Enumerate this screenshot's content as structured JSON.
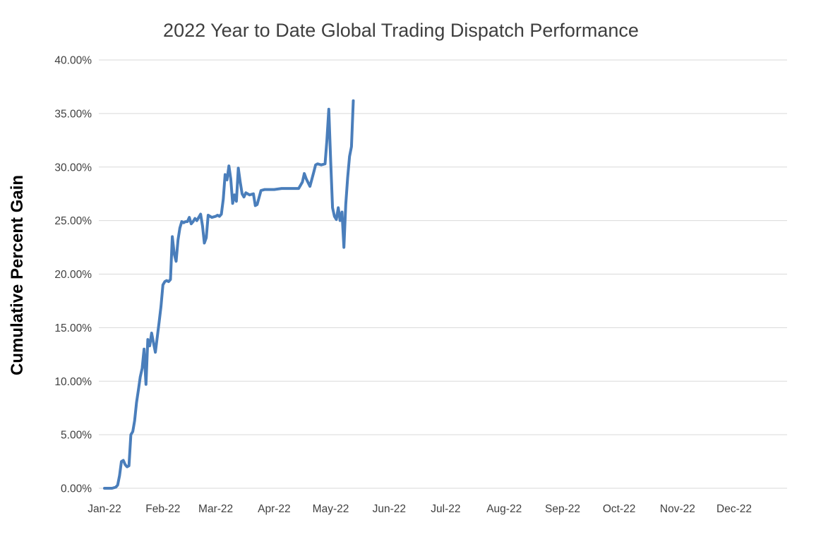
{
  "colors": {
    "background": "#ffffff",
    "grid": "#d9d9d9",
    "title_text": "#3f3f3f",
    "tick_text": "#404040",
    "axis_label_text": "#000000",
    "line": "#4A7EBB"
  },
  "chart_data": {
    "type": "line",
    "title": "2022 Year to Date Global Trading Dispatch Performance",
    "xlabel": "",
    "ylabel": "Cumulative Percent Gain",
    "ylim": [
      0,
      40
    ],
    "grid": "horizontal",
    "legend": "none",
    "line_color": "#4A7EBB",
    "y_tick_values": [
      0,
      5,
      10,
      15,
      20,
      25,
      30,
      35,
      40
    ],
    "y_tick_labels": [
      "0.00%",
      "5.00%",
      "10.00%",
      "15.00%",
      "20.00%",
      "25.00%",
      "30.00%",
      "35.00%",
      "40.00%"
    ],
    "x_tick_labels": [
      "Jan-22",
      "Feb-22",
      "Mar-22",
      "Apr-22",
      "May-22",
      "Jun-22",
      "Jul-22",
      "Aug-22",
      "Sep-22",
      "Oct-22",
      "Nov-22",
      "Dec-22"
    ],
    "x_tick_days": [
      1,
      32,
      60,
      91,
      121,
      152,
      182,
      213,
      244,
      274,
      305,
      335
    ],
    "series": [
      {
        "name": "Cumulative Percent Gain",
        "x_day_of_year": [
          1,
          3,
          5,
          7,
          8,
          9,
          10,
          11,
          12,
          13,
          14,
          15,
          16,
          17,
          18,
          19,
          20,
          21,
          22,
          23,
          24,
          25,
          26,
          27,
          28,
          30,
          31,
          32,
          33,
          34,
          35,
          36,
          37,
          38,
          39,
          40,
          41,
          42,
          43,
          44,
          45,
          46,
          47,
          48,
          49,
          50,
          52,
          53,
          54,
          55,
          56,
          57,
          58,
          60,
          61,
          62,
          63,
          64,
          65,
          66,
          67,
          68,
          69,
          70,
          71,
          72,
          73,
          74,
          75,
          76,
          78,
          80,
          81,
          82,
          84,
          86,
          88,
          91,
          95,
          100,
          104,
          106,
          107,
          108,
          110,
          112,
          113,
          114,
          116,
          118,
          119,
          120,
          121,
          122,
          123,
          124,
          125,
          126,
          127,
          128,
          129,
          130,
          131,
          132,
          133
        ],
        "y_percent": [
          0,
          0,
          0,
          0.1,
          0.3,
          1.2,
          2.5,
          2.6,
          2.2,
          2.0,
          2.1,
          5.0,
          5.3,
          6.3,
          8.0,
          9.2,
          10.4,
          11.2,
          13.0,
          9.7,
          13.9,
          13.3,
          14.5,
          13.6,
          12.7,
          15.5,
          17.0,
          19.0,
          19.3,
          19.4,
          19.3,
          19.5,
          23.5,
          21.9,
          21.2,
          23.2,
          24.3,
          24.9,
          24.8,
          24.9,
          24.9,
          25.3,
          24.7,
          24.9,
          25.2,
          25.0,
          25.6,
          24.5,
          22.9,
          23.4,
          25.5,
          25.4,
          25.3,
          25.4,
          25.5,
          25.4,
          25.6,
          27.0,
          29.3,
          28.8,
          30.1,
          28.9,
          26.6,
          27.4,
          26.8,
          29.9,
          28.6,
          27.5,
          27.2,
          27.6,
          27.4,
          27.5,
          26.4,
          26.5,
          27.8,
          27.9,
          27.9,
          27.9,
          28.0,
          28.0,
          28.0,
          28.6,
          29.4,
          28.9,
          28.2,
          29.5,
          30.2,
          30.3,
          30.2,
          30.3,
          32.5,
          35.4,
          30.5,
          26.2,
          25.4,
          25.1,
          26.2,
          25.0,
          25.8,
          22.5,
          26.5,
          29.0,
          31.0,
          31.9,
          36.2
        ]
      }
    ]
  }
}
